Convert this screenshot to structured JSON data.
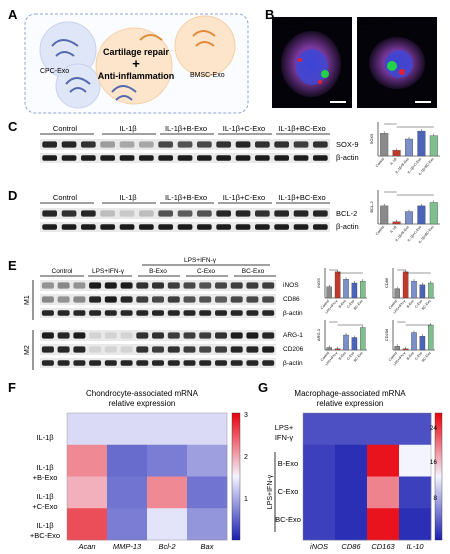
{
  "panels": {
    "A": {
      "letter": "A",
      "cpc": "CPC-Exo",
      "bmsc": "BMSC-Exo",
      "center_top": "Cartilage repair",
      "plus": "+",
      "center_bottom": "Anti-inflammation"
    },
    "B": {
      "letter": "B",
      "left_legend": [
        "B-Exo",
        "C-Exo",
        "Hoechst",
        "F-actin"
      ],
      "right_legend": [
        "B-Exo",
        "C-Exo",
        "Hoechst",
        "F-actin"
      ]
    },
    "C": {
      "letter": "C",
      "groups": [
        "Control",
        "IL-1β",
        "IL-1β+B-Exo",
        "IL-1β+C-Exo",
        "IL-1β+BC-Exo"
      ],
      "rows": [
        "SOX-9",
        "β-actin"
      ],
      "bar_ylabel": "SOX9",
      "bar_xlabels": [
        "Control",
        "IL-1β",
        "IL-1β+B-Exo",
        "IL-1β+C-Exo",
        "IL-1β+BC-Exo"
      ]
    },
    "D": {
      "letter": "D",
      "groups": [
        "Control",
        "IL-1β",
        "IL-1β+B-Exo",
        "IL-1β+C-Exo",
        "IL-1β+BC-Exo"
      ],
      "rows": [
        "BCL-2",
        "β-actin"
      ],
      "bar_ylabel": "BCL-2",
      "bar_xlabels": [
        "Control",
        "IL-1β",
        "IL-1β+B-Exo",
        "IL-1β+C-Exo",
        "IL-1β+BC-Exo"
      ]
    },
    "E": {
      "letter": "E",
      "top_label": "LPS+IFN-γ",
      "groups": [
        "Control",
        "LPS+IFN-γ",
        "B-Exo",
        "C-Exo",
        "BC-Exo"
      ],
      "m1": "M1",
      "m2": "M2",
      "rows_m1": [
        "iNOS",
        "CD86",
        "β-actin"
      ],
      "rows_m2": [
        "ARG-1",
        "CD206",
        "β-actin"
      ],
      "bar_ylabels": [
        "iNOS",
        "CD86",
        "ARG-1",
        "CD206"
      ]
    },
    "F": {
      "letter": "F",
      "title_line1": "Chondrocyte-associated mRNA",
      "title_line2": "relative expression",
      "rows": [
        [
          "IL-1β"
        ],
        [
          "IL-1β",
          "+B-Exo"
        ],
        [
          "IL-1β",
          "+C-Exo"
        ],
        [
          "IL-1β",
          "+BC-Exo"
        ]
      ],
      "cols": [
        "Acan",
        "MMP-13",
        "Bcl-2",
        "Bax"
      ],
      "colorbar_ticks": [
        "3",
        "2",
        "1"
      ]
    },
    "G": {
      "letter": "G",
      "title_line1": "Macrophage-associated mRNA",
      "title_line2": "relative expression",
      "rows": [
        [
          "LPS+",
          "IFN-γ"
        ],
        [
          "B-Exo"
        ],
        [
          "C-Exo"
        ],
        [
          "BC-Exo"
        ]
      ],
      "group_label": "LPS+IFN-γ",
      "cols": [
        "iNOS",
        "CD86",
        "CD163",
        "IL-10"
      ],
      "colorbar_ticks": [
        "24",
        "16",
        "8"
      ]
    }
  },
  "chart_data": [
    {
      "type": "bar",
      "title": "",
      "ylabel": "SOX9",
      "categories": [
        "Control",
        "IL-1β",
        "IL-1β+B-Exo",
        "IL-1β+C-Exo",
        "IL-1β+BC-Exo"
      ],
      "values": [
        1.0,
        0.25,
        0.75,
        1.1,
        0.9
      ],
      "ylim": [
        0,
        1.5
      ],
      "colors": [
        "#8a8a8a",
        "#c0392b",
        "#7b8fc9",
        "#4b63b8",
        "#7fbf8f"
      ]
    },
    {
      "type": "bar",
      "title": "",
      "ylabel": "BCL-2",
      "categories": [
        "Control",
        "IL-1β",
        "IL-1β+B-Exo",
        "IL-1β+C-Exo",
        "IL-1β+BC-Exo"
      ],
      "values": [
        0.8,
        0.1,
        0.55,
        0.8,
        0.95
      ],
      "ylim": [
        0,
        1.5
      ],
      "colors": [
        "#8a8a8a",
        "#c0392b",
        "#7b8fc9",
        "#4b63b8",
        "#7fbf8f"
      ]
    },
    {
      "type": "bar",
      "title": "",
      "ylabel": "iNOS",
      "categories": [
        "Control",
        "LPS+IFN-γ",
        "B-Exo",
        "C-Exo",
        "BC-Exo"
      ],
      "values": [
        0.6,
        1.4,
        1.0,
        0.8,
        0.9
      ],
      "ylim": [
        0,
        1.6
      ],
      "colors": [
        "#8a8a8a",
        "#c0392b",
        "#7b8fc9",
        "#4b63b8",
        "#7fbf8f"
      ]
    },
    {
      "type": "bar",
      "title": "",
      "ylabel": "CD86",
      "categories": [
        "Control",
        "LPS+IFN-γ",
        "B-Exo",
        "C-Exo",
        "BC-Exo"
      ],
      "values": [
        0.5,
        1.4,
        0.9,
        0.7,
        0.8
      ],
      "ylim": [
        0,
        1.6
      ],
      "colors": [
        "#8a8a8a",
        "#c0392b",
        "#7b8fc9",
        "#4b63b8",
        "#7fbf8f"
      ]
    },
    {
      "type": "bar",
      "title": "",
      "ylabel": "ARG-1",
      "categories": [
        "Control",
        "LPS+IFN-γ",
        "B-Exo",
        "C-Exo",
        "BC-Exo"
      ],
      "values": [
        0.1,
        0.05,
        0.6,
        0.5,
        0.9
      ],
      "ylim": [
        0,
        1.2
      ],
      "colors": [
        "#8a8a8a",
        "#c0392b",
        "#7b8fc9",
        "#4b63b8",
        "#7fbf8f"
      ]
    },
    {
      "type": "bar",
      "title": "",
      "ylabel": "CD206",
      "categories": [
        "Control",
        "LPS+IFN-γ",
        "B-Exo",
        "C-Exo",
        "BC-Exo"
      ],
      "values": [
        0.15,
        0.05,
        0.7,
        0.55,
        1.0
      ],
      "ylim": [
        0,
        1.2
      ],
      "colors": [
        "#8a8a8a",
        "#c0392b",
        "#7b8fc9",
        "#4b63b8",
        "#7fbf8f"
      ]
    },
    {
      "type": "heatmap",
      "title": "Chondrocyte-associated mRNA relative expression",
      "rows": [
        "IL-1β",
        "IL-1β+B-Exo",
        "IL-1β+C-Exo",
        "IL-1β+BC-Exo"
      ],
      "cols": [
        "Acan",
        "MMP-13",
        "Bcl-2",
        "Bax"
      ],
      "values": [
        [
          1.6,
          1.6,
          1.6,
          1.6
        ],
        [
          2.3,
          0.95,
          1.05,
          1.25
        ],
        [
          2.1,
          1.0,
          2.3,
          1.0
        ],
        [
          2.6,
          1.05,
          1.65,
          1.2
        ]
      ],
      "vmin": 0.5,
      "vmax": 3,
      "colormap": "blue-white-red"
    },
    {
      "type": "heatmap",
      "title": "Macrophage-associated mRNA relative expression",
      "rows": [
        "LPS+IFN-γ",
        "B-Exo",
        "C-Exo",
        "BC-Exo"
      ],
      "cols": [
        "iNOS",
        "CD86",
        "CD163",
        "IL-10"
      ],
      "values": [
        [
          4,
          4,
          4,
          4
        ],
        [
          3,
          2,
          26,
          14
        ],
        [
          3,
          2,
          20,
          3
        ],
        [
          3,
          2,
          26,
          2
        ]
      ],
      "vmin": 1,
      "vmax": 27,
      "colormap": "blue-white-red"
    }
  ]
}
